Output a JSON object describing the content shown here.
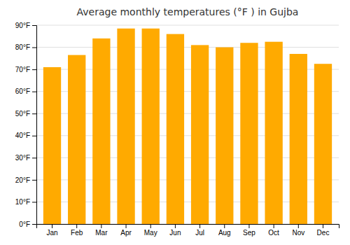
{
  "chart_data": {
    "type": "bar",
    "title": "Average monthly temperatures (°F ) in Gujba",
    "categories": [
      "Jan",
      "Feb",
      "Mar",
      "Apr",
      "May",
      "Jun",
      "Jul",
      "Aug",
      "Sep",
      "Oct",
      "Nov",
      "Dec"
    ],
    "values": [
      71,
      76.5,
      84,
      88.5,
      88.5,
      86,
      81,
      80,
      82,
      82.5,
      77,
      72.5
    ],
    "color": "#FFAA00",
    "ylim": [
      0,
      90
    ],
    "yticks": [
      {
        "value": 0,
        "label": "0°F"
      },
      {
        "value": 10,
        "label": "10°F"
      },
      {
        "value": 20,
        "label": "20°F"
      },
      {
        "value": 30,
        "label": "30°F"
      },
      {
        "value": 40,
        "label": "40°F"
      },
      {
        "value": 50,
        "label": "50°F"
      },
      {
        "value": 60,
        "label": "60°F"
      },
      {
        "value": 70,
        "label": "70°F"
      },
      {
        "value": 80,
        "label": "80°F"
      },
      {
        "value": 90,
        "label": "90°F"
      }
    ],
    "grid": true
  }
}
